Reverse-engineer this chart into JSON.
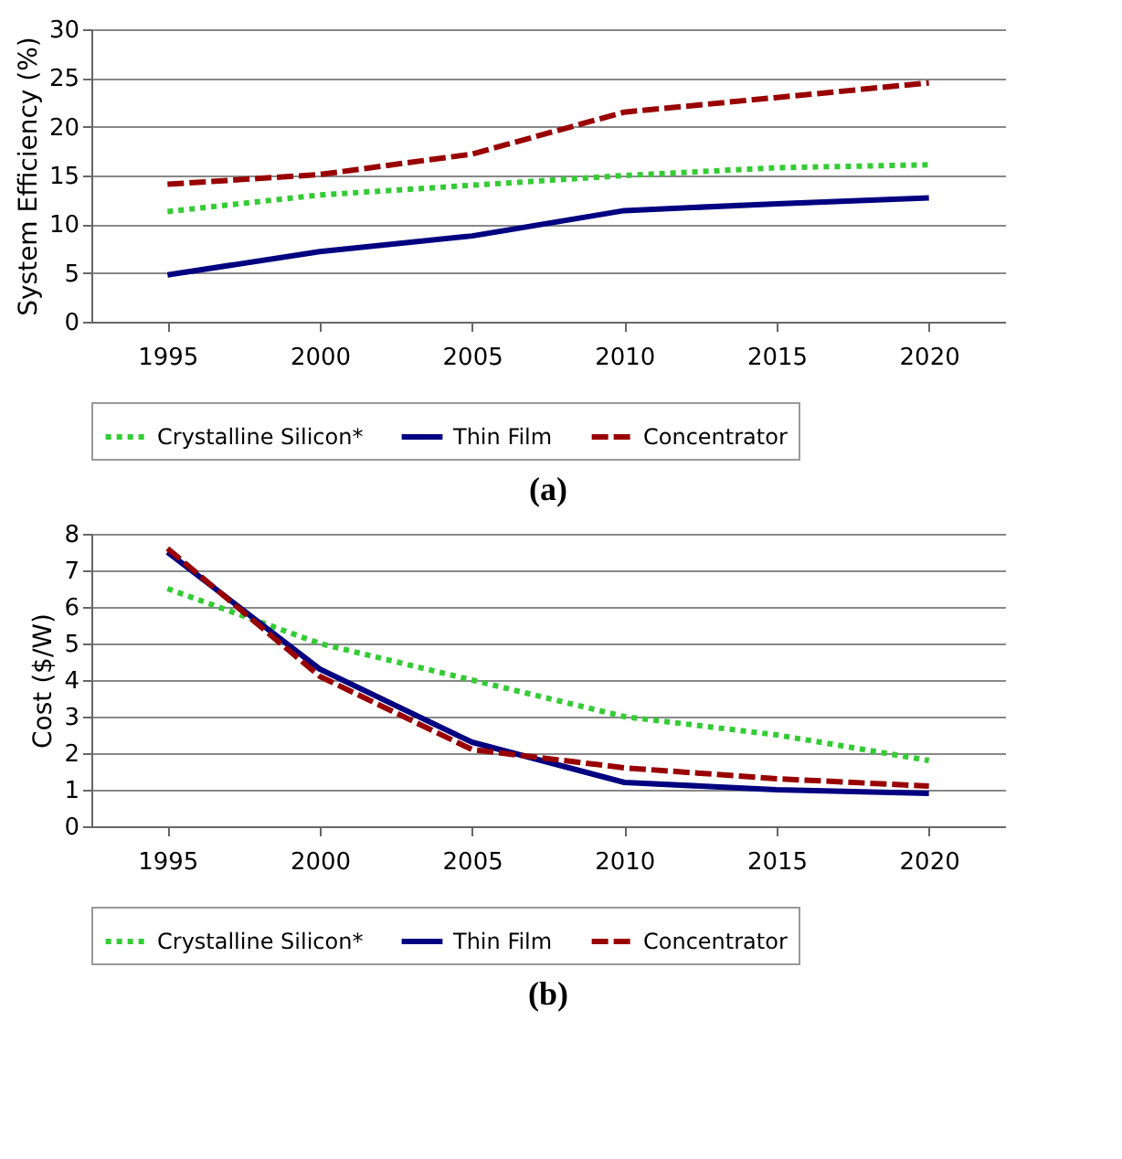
{
  "chart_data": [
    {
      "type": "line",
      "ylabel": "System Efficiency (%)",
      "categories": [
        "1995",
        "2000",
        "2005",
        "2010",
        "2015",
        "2020"
      ],
      "ylim": [
        0,
        30
      ],
      "yticks": [
        0,
        5,
        10,
        15,
        20,
        25,
        30
      ],
      "grid": "y",
      "legend": "bottom",
      "annotations": [
        "(a)"
      ],
      "series": [
        {
          "name": "Crystalline Silicon*",
          "color": "#33cc33",
          "line_style": "dotted",
          "values": [
            11.3,
            13,
            14,
            15,
            15.8,
            16.1
          ]
        },
        {
          "name": "Thin Film",
          "color": "#000080",
          "line_style": "solid",
          "values": [
            4.8,
            7.2,
            8.8,
            11.4,
            12.1,
            12.7
          ]
        },
        {
          "name": "Concentrator",
          "color": "#990000",
          "line_style": "dashed",
          "values": [
            14.1,
            15.1,
            17.2,
            21.5,
            23,
            24.5
          ]
        }
      ]
    },
    {
      "type": "line",
      "ylabel": "Cost ($/W)",
      "categories": [
        "1995",
        "2000",
        "2005",
        "2010",
        "2015",
        "2020"
      ],
      "ylim": [
        0,
        8
      ],
      "yticks": [
        0,
        1,
        2,
        3,
        4,
        5,
        6,
        7,
        8
      ],
      "grid": "y",
      "legend": "bottom",
      "annotations": [
        "(b)"
      ],
      "series": [
        {
          "name": "Crystalline Silicon*",
          "color": "#33cc33",
          "line_style": "dotted",
          "values": [
            6.5,
            5,
            4,
            3,
            2.5,
            1.8
          ]
        },
        {
          "name": "Thin Film",
          "color": "#000080",
          "line_style": "solid",
          "values": [
            7.5,
            4.3,
            2.3,
            1.2,
            1.0,
            0.9
          ]
        },
        {
          "name": "Concentrator",
          "color": "#990000",
          "line_style": "dashed",
          "values": [
            7.6,
            4.1,
            2.1,
            1.6,
            1.3,
            1.1
          ]
        }
      ]
    }
  ]
}
